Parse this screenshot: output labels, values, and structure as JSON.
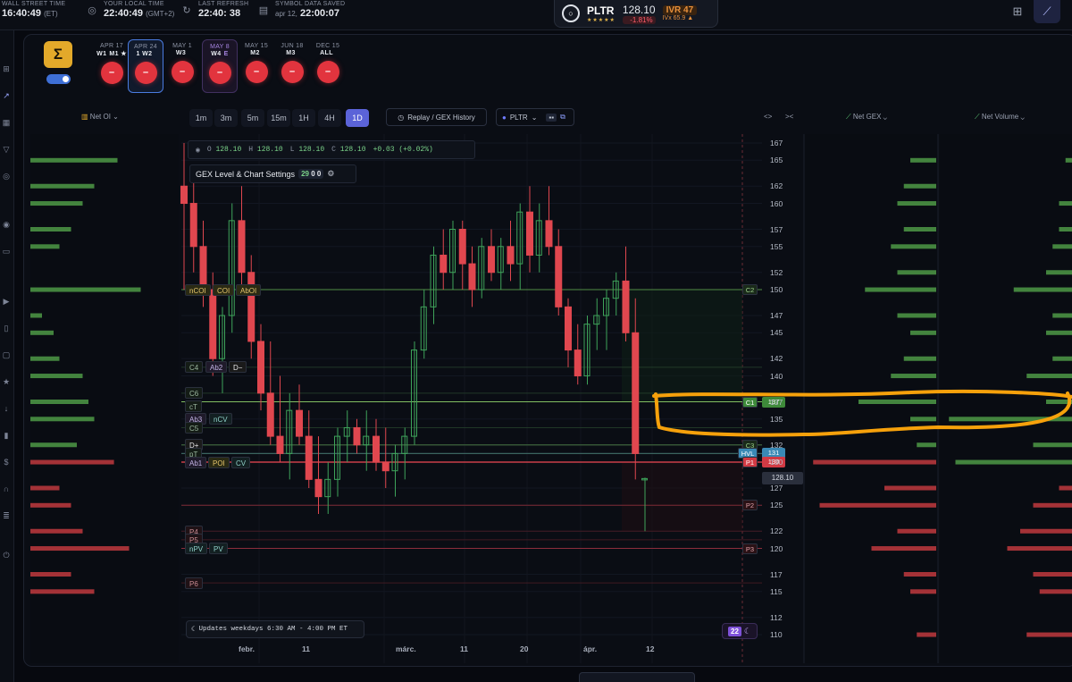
{
  "topbar": {
    "wall_street": {
      "label": "WALL STREET TIME",
      "value": "16:40:49",
      "suffix": "(ET)"
    },
    "local": {
      "label": "YOUR LOCAL TIME",
      "value": "22:40:49",
      "suffix": "(GMT+2)"
    },
    "refresh": {
      "label": "LAST REFRESH",
      "value": "22:40: 38"
    },
    "saved": {
      "label": "SYMBOL DATA SAVED",
      "value_prefix": "apr 12,",
      "value": "22:00:07"
    },
    "ticker": {
      "symbol": "PLTR",
      "stars": "★★★★★",
      "price": "128.10",
      "change": "-1.81%",
      "ivr": "IVR 47",
      "ivx": "IVx 65.9 ▲"
    },
    "icons": [
      "grid-icon",
      "chart-line-icon"
    ]
  },
  "expirations": [
    {
      "date": "APR 17",
      "week": "W1",
      "extra": "M1 ★"
    },
    {
      "date": "APR 24",
      "week": "1  W2",
      "extra": ""
    },
    {
      "date": "MAY 1",
      "week": "W3",
      "extra": ""
    },
    {
      "date": "MAY 8",
      "week": "W4",
      "extra": "E"
    },
    {
      "date": "MAY 15",
      "week": "M2",
      "extra": ""
    },
    {
      "date": "JUN 18",
      "week": "M3",
      "extra": ""
    },
    {
      "date": "DEC 15",
      "week": "ALL",
      "extra": ""
    }
  ],
  "expiration_button_label": "–",
  "toolbar": {
    "net_oi": "Net OI",
    "timeframes": [
      "1m",
      "3m",
      "5m",
      "15m",
      "1H",
      "4H",
      "1D"
    ],
    "active_timeframe": "1D",
    "replay": "Replay / GEX History",
    "symbol": "PLTR",
    "net_gex": "Net GEX",
    "net_volume": "Net Volume",
    "arrows_left": "<>",
    "arrows_right": "><"
  },
  "ohlc": {
    "o_key": "O",
    "o": "128.10",
    "h_key": "H",
    "h": "128.10",
    "l_key": "L",
    "l": "128.10",
    "c_key": "C",
    "c": "128.10",
    "change": "+0.03 (+0.02%)"
  },
  "gex_settings": {
    "label": "GEX Level & Chart Settings",
    "counts": [
      "29",
      "0",
      "0"
    ]
  },
  "chart_data": {
    "type": "candlestick",
    "symbol": "PLTR",
    "price_scale": [
      "167",
      "165",
      "162",
      "160",
      "157",
      "155",
      "152",
      "150",
      "147",
      "145",
      "142",
      "140",
      "137",
      "135",
      "132",
      "130",
      "127",
      "125",
      "122",
      "120",
      "117",
      "115",
      "112",
      "110"
    ],
    "x_labels": [
      "febr.",
      "11",
      "márc.",
      "11",
      "20",
      "ápr.",
      "12"
    ],
    "last_price": "128.10",
    "candles_ohlc": [
      [
        162,
        167,
        150,
        160
      ],
      [
        160,
        163,
        152,
        155
      ],
      [
        155,
        158,
        148,
        150
      ],
      [
        150,
        152,
        140,
        142
      ],
      [
        142,
        148,
        138,
        147
      ],
      [
        147,
        160,
        145,
        158
      ],
      [
        158,
        162,
        150,
        152
      ],
      [
        152,
        154,
        142,
        144
      ],
      [
        144,
        146,
        136,
        138
      ],
      [
        138,
        144,
        132,
        133
      ],
      [
        133,
        140,
        130,
        131
      ],
      [
        131,
        138,
        128,
        136
      ],
      [
        136,
        139,
        132,
        133
      ],
      [
        133,
        136,
        127,
        128
      ],
      [
        128,
        133,
        124,
        126
      ],
      [
        126,
        130,
        124,
        128
      ],
      [
        128,
        134,
        126,
        133
      ],
      [
        133,
        136,
        130,
        134
      ],
      [
        134,
        135,
        131,
        132
      ],
      [
        132,
        136,
        129,
        133
      ],
      [
        133,
        135,
        129,
        130
      ],
      [
        130,
        134,
        127,
        129
      ],
      [
        129,
        132,
        126,
        131
      ],
      [
        131,
        134,
        128,
        133
      ],
      [
        133,
        144,
        132,
        143
      ],
      [
        143,
        150,
        142,
        148
      ],
      [
        148,
        155,
        146,
        154
      ],
      [
        154,
        157,
        150,
        152
      ],
      [
        152,
        158,
        150,
        157
      ],
      [
        157,
        158,
        150,
        153
      ],
      [
        153,
        155,
        148,
        150
      ],
      [
        150,
        156,
        149,
        155
      ],
      [
        155,
        157,
        151,
        152
      ],
      [
        152,
        156,
        150,
        155
      ],
      [
        155,
        158,
        151,
        153
      ],
      [
        153,
        160,
        150,
        159
      ],
      [
        159,
        162,
        152,
        154
      ],
      [
        154,
        160,
        152,
        158
      ],
      [
        158,
        162,
        154,
        155
      ],
      [
        155,
        157,
        147,
        148
      ],
      [
        148,
        149,
        141,
        143
      ],
      [
        143,
        146,
        139,
        140
      ],
      [
        140,
        147,
        139,
        146
      ],
      [
        146,
        149,
        143,
        147
      ],
      [
        147,
        150,
        143,
        149
      ],
      [
        149,
        152,
        147,
        151
      ],
      [
        151,
        155,
        144,
        145
      ],
      [
        145,
        149,
        128,
        131
      ],
      [
        128.1,
        128.2,
        122,
        128.1
      ]
    ],
    "levels": [
      {
        "label": "C2",
        "price": "150"
      },
      {
        "label": "C1",
        "price": "137"
      },
      {
        "label": "C3",
        "price": "132"
      },
      {
        "label": "HVL",
        "price": "131"
      },
      {
        "label": "P1",
        "price": "130"
      },
      {
        "label": "P2",
        "price": "125"
      },
      {
        "label": "P3",
        "price": "120"
      }
    ],
    "left_tags": [
      "nCOI",
      "COI",
      "AbOI",
      "C4",
      "Ab2",
      "D−",
      "C6",
      "cT",
      "Ab3",
      "nCV",
      "C5",
      "D+",
      "pT",
      "Ab1",
      "POI",
      "CV",
      "P4",
      "P5",
      "nPV",
      "PV",
      "P6"
    ],
    "net_oi_bars": [
      {
        "price": 165,
        "value": 0.75
      },
      {
        "price": 162,
        "value": 0.55
      },
      {
        "price": 160,
        "value": 0.45
      },
      {
        "price": 157,
        "value": 0.35
      },
      {
        "price": 155,
        "value": 0.25
      },
      {
        "price": 150,
        "value": 0.95
      },
      {
        "price": 147,
        "value": 0.1
      },
      {
        "price": 145,
        "value": 0.2
      },
      {
        "price": 142,
        "value": 0.25
      },
      {
        "price": 140,
        "value": 0.45
      },
      {
        "price": 137,
        "value": 0.5
      },
      {
        "price": 135,
        "value": 0.55
      },
      {
        "price": 132,
        "value": 0.4
      },
      {
        "price": 130,
        "value": -0.72
      },
      {
        "price": 127,
        "value": -0.25
      },
      {
        "price": 125,
        "value": -0.35
      },
      {
        "price": 122,
        "value": -0.45
      },
      {
        "price": 120,
        "value": -0.85
      },
      {
        "price": 117,
        "value": -0.35
      },
      {
        "price": 115,
        "value": -0.55
      }
    ],
    "net_gex_bars": [
      {
        "price": 165,
        "value": 0.2
      },
      {
        "price": 162,
        "value": 0.25
      },
      {
        "price": 160,
        "value": 0.3
      },
      {
        "price": 157,
        "value": 0.25
      },
      {
        "price": 155,
        "value": 0.35
      },
      {
        "price": 152,
        "value": 0.3
      },
      {
        "price": 150,
        "value": 0.55
      },
      {
        "price": 147,
        "value": 0.3
      },
      {
        "price": 145,
        "value": 0.2
      },
      {
        "price": 142,
        "value": 0.25
      },
      {
        "price": 140,
        "value": 0.35
      },
      {
        "price": 137,
        "value": 0.6
      },
      {
        "price": 135,
        "value": 0.2
      },
      {
        "price": 132,
        "value": 0.15
      },
      {
        "price": 130,
        "value": -0.95
      },
      {
        "price": 127,
        "value": -0.4
      },
      {
        "price": 125,
        "value": -0.9
      },
      {
        "price": 122,
        "value": -0.3
      },
      {
        "price": 120,
        "value": -0.5
      },
      {
        "price": 117,
        "value": -0.25
      },
      {
        "price": 115,
        "value": -0.2
      },
      {
        "price": 110,
        "value": -0.15
      }
    ],
    "net_volume_bars": [
      {
        "price": 165,
        "value": 0.05
      },
      {
        "price": 160,
        "value": 0.1
      },
      {
        "price": 157,
        "value": 0.1
      },
      {
        "price": 155,
        "value": 0.15
      },
      {
        "price": 152,
        "value": 0.2
      },
      {
        "price": 150,
        "value": 0.45
      },
      {
        "price": 147,
        "value": 0.15
      },
      {
        "price": 145,
        "value": 0.2
      },
      {
        "price": 142,
        "value": 0.15
      },
      {
        "price": 140,
        "value": 0.35
      },
      {
        "price": 137,
        "value": 0.2
      },
      {
        "price": 135,
        "value": 0.95
      },
      {
        "price": 132,
        "value": 0.3
      },
      {
        "price": 130,
        "value": 0.9
      },
      {
        "price": 127,
        "value": -0.1
      },
      {
        "price": 125,
        "value": -0.3
      },
      {
        "price": 122,
        "value": -0.4
      },
      {
        "price": 120,
        "value": -0.5
      },
      {
        "price": 117,
        "value": -0.3
      },
      {
        "price": 115,
        "value": -0.25
      },
      {
        "price": 110,
        "value": -0.35
      }
    ]
  },
  "updates": "Updates weekdays 6:30 AM - 4:00 PM ET",
  "moon_badge": "22"
}
